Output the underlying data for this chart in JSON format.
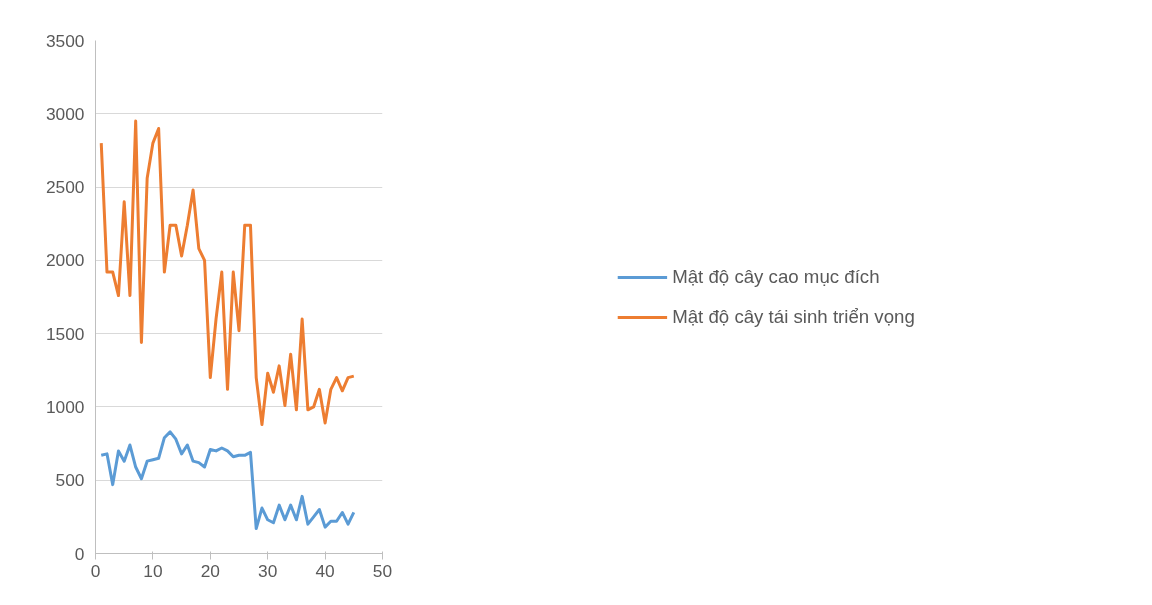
{
  "chart_data": {
    "type": "line",
    "x": [
      1,
      2,
      3,
      4,
      5,
      6,
      7,
      8,
      9,
      10,
      11,
      12,
      13,
      14,
      15,
      16,
      17,
      18,
      19,
      20,
      21,
      22,
      23,
      24,
      25,
      26,
      27,
      28,
      29,
      30,
      31,
      32,
      33,
      34,
      35,
      36,
      37,
      38,
      39,
      40,
      41,
      42,
      43,
      44,
      45
    ],
    "series": [
      {
        "name": "Mật độ cây cao mục đích",
        "color": "#5b9bd5",
        "values": [
          670,
          680,
          470,
          700,
          630,
          740,
          590,
          510,
          630,
          640,
          650,
          790,
          830,
          780,
          680,
          740,
          630,
          620,
          590,
          710,
          700,
          720,
          700,
          660,
          670,
          670,
          690,
          170,
          310,
          230,
          210,
          330,
          230,
          330,
          230,
          390,
          200,
          250,
          300,
          180,
          220,
          220,
          280,
          200,
          280
        ]
      },
      {
        "name": "Mật độ cây tái sinh triển vọng",
        "color": "#ed7d31",
        "values": [
          2800,
          1920,
          1920,
          1760,
          2400,
          1760,
          2950,
          1440,
          2560,
          2800,
          2900,
          1920,
          2240,
          2240,
          2030,
          2240,
          2480,
          2080,
          2000,
          1200,
          1600,
          1920,
          1120,
          1920,
          1520,
          2240,
          2240,
          1200,
          880,
          1230,
          1100,
          1280,
          1010,
          1360,
          980,
          1600,
          980,
          1000,
          1120,
          890,
          1120,
          1200,
          1110,
          1200,
          1210
        ]
      }
    ],
    "xlim": [
      0,
      50
    ],
    "xticks": [
      0,
      10,
      20,
      30,
      40,
      50
    ],
    "ylim": [
      0,
      3500
    ],
    "yticks": [
      0,
      500,
      1000,
      1500,
      2000,
      2500,
      3000,
      3500
    ],
    "grid": "y",
    "legend": "right",
    "marker": "none",
    "line_style": "solid"
  }
}
